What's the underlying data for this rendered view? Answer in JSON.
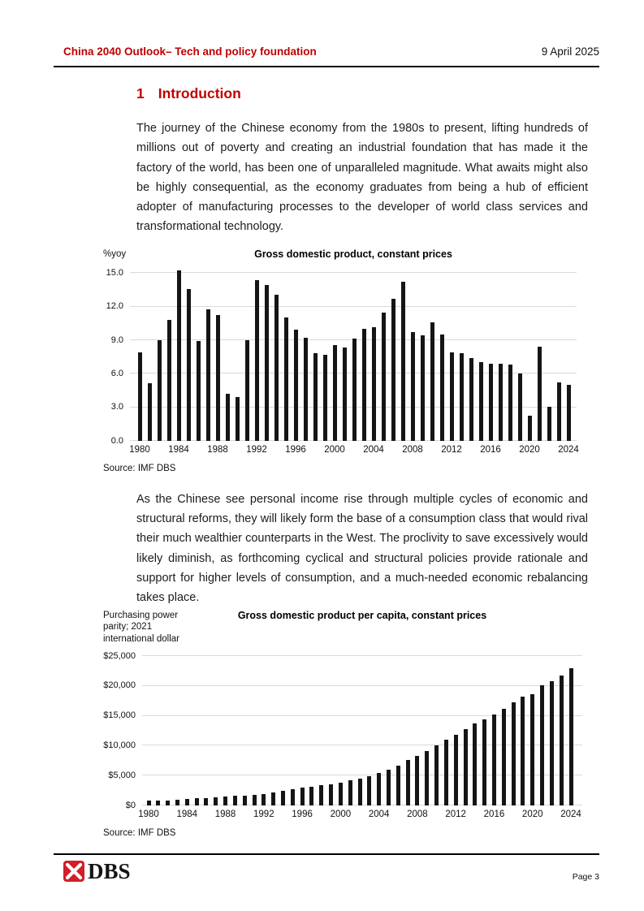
{
  "header": {
    "title": "China 2040 Outlook– Tech and policy foundation",
    "date": "9 April 2025"
  },
  "section": {
    "number": "1",
    "title": "Introduction"
  },
  "paragraphs": {
    "intro": "The journey of the Chinese economy from the 1980s to present, lifting hundreds of millions out of poverty and creating an industrial foundation that has made it the factory of the world, has been one of unparalleled magnitude. What awaits might also be highly consequential, as the economy graduates from being a hub of efficient adopter of manufacturing processes to the developer of world class services and transformational technology.",
    "consumption": "As the Chinese see personal income rise through multiple cycles of economic and structural reforms, they will likely form the base of a consumption class that would rival their much wealthier counterparts in the West.  The proclivity to save excessively would likely diminish, as forthcoming cyclical and structural policies provide rationale and support for higher levels of consumption, and a much-needed economic rebalancing takes place."
  },
  "chart_data": [
    {
      "type": "bar",
      "title": "Gross domestic product, constant prices",
      "unit_label": "%yoy",
      "source": "Source: IMF DBS",
      "x": [
        1980,
        1981,
        1982,
        1983,
        1984,
        1985,
        1986,
        1987,
        1988,
        1989,
        1990,
        1991,
        1992,
        1993,
        1994,
        1995,
        1996,
        1997,
        1998,
        1999,
        2000,
        2001,
        2002,
        2003,
        2004,
        2005,
        2006,
        2007,
        2008,
        2009,
        2010,
        2011,
        2012,
        2013,
        2014,
        2015,
        2016,
        2017,
        2018,
        2019,
        2020,
        2021,
        2022,
        2023,
        2024
      ],
      "values": [
        7.9,
        5.1,
        9.0,
        10.8,
        15.2,
        13.5,
        8.9,
        11.7,
        11.2,
        4.2,
        3.9,
        9.0,
        14.3,
        13.9,
        13.0,
        11.0,
        9.9,
        9.2,
        7.8,
        7.7,
        8.5,
        8.3,
        9.1,
        10.0,
        10.1,
        11.4,
        12.7,
        14.2,
        9.7,
        9.4,
        10.6,
        9.5,
        7.9,
        7.8,
        7.4,
        7.0,
        6.9,
        6.9,
        6.8,
        6.0,
        2.2,
        8.4,
        3.0,
        5.2,
        5.0
      ],
      "ylim": [
        0,
        15
      ],
      "ytick_labels": [
        "0.0",
        "3.0",
        "6.0",
        "9.0",
        "12.0",
        "15.0"
      ],
      "xtick_labels": [
        "1980",
        "1984",
        "1988",
        "1992",
        "1996",
        "2000",
        "2004",
        "2008",
        "2012",
        "2016",
        "2020",
        "2024"
      ],
      "xtick_every": 4,
      "grid": true,
      "legend": "none",
      "bar_color": "#151515"
    },
    {
      "type": "bar",
      "title": "Gross domestic product per capita, constant prices",
      "unit_label": "Purchasing power parity; 2021 international dollar",
      "source": "Source: IMF DBS",
      "x": [
        1980,
        1981,
        1982,
        1983,
        1984,
        1985,
        1986,
        1987,
        1988,
        1989,
        1990,
        1991,
        1992,
        1993,
        1994,
        1995,
        1996,
        1997,
        1998,
        1999,
        2000,
        2001,
        2002,
        2003,
        2004,
        2005,
        2006,
        2007,
        2008,
        2009,
        2010,
        2011,
        2012,
        2013,
        2014,
        2015,
        2016,
        2017,
        2018,
        2019,
        2020,
        2021,
        2022,
        2023,
        2024
      ],
      "values": [
        730,
        760,
        820,
        900,
        1020,
        1150,
        1230,
        1350,
        1480,
        1520,
        1560,
        1680,
        1900,
        2140,
        2400,
        2640,
        2870,
        3100,
        3310,
        3540,
        3810,
        4100,
        4450,
        4870,
        5330,
        5910,
        6630,
        7540,
        8230,
        9000,
        10000,
        11000,
        11800,
        12700,
        13600,
        14350,
        15200,
        16150,
        17200,
        18150,
        18500,
        20100,
        20750,
        21700,
        22900
      ],
      "ylim": [
        0,
        25000
      ],
      "ytick_labels": [
        "$0",
        "$5,000",
        "$10,000",
        "$15,000",
        "$20,000",
        "$25,000"
      ],
      "xtick_labels": [
        "1980",
        "1984",
        "1988",
        "1992",
        "1996",
        "2000",
        "2004",
        "2008",
        "2012",
        "2016",
        "2020",
        "2024"
      ],
      "xtick_every": 4,
      "grid": true,
      "legend": "none",
      "bar_color": "#151515"
    }
  ],
  "footer": {
    "logo_text": "DBS",
    "page": "Page 3"
  },
  "colors": {
    "accent_red": "#c00000",
    "bar_black": "#151515",
    "gridline_gray": "#d9d9d9",
    "logo_red": "#d0202a"
  }
}
